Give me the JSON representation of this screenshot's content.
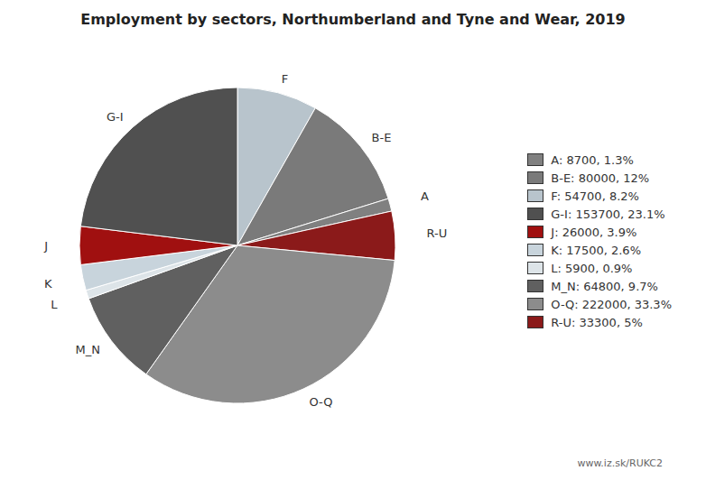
{
  "chart_data": {
    "type": "pie",
    "title": "Employment by sectors, Northumberland and Tyne and Wear, 2019",
    "categories": [
      "F",
      "B-E",
      "A",
      "R-U",
      "O-Q",
      "M_N",
      "L",
      "K",
      "J",
      "G-I"
    ],
    "values": [
      54700,
      80000,
      8700,
      33300,
      222000,
      64800,
      5900,
      17500,
      26000,
      153700
    ],
    "colors": [
      "#b8c4cc",
      "#7a7a7a",
      "#808080",
      "#8b1a1a",
      "#8c8c8c",
      "#606060",
      "#dde4e8",
      "#c8d4dc",
      "#a01010",
      "#505050"
    ],
    "legend": "right",
    "legend_entries": [
      {
        "category": "A",
        "label": "A: 8700, 1.3%"
      },
      {
        "category": "B-E",
        "label": "B-E: 80000, 12%"
      },
      {
        "category": "F",
        "label": "F: 54700, 8.2%"
      },
      {
        "category": "G-I",
        "label": "G-I: 153700, 23.1%"
      },
      {
        "category": "J",
        "label": "J: 26000, 3.9%"
      },
      {
        "category": "K",
        "label": "K: 17500, 2.6%"
      },
      {
        "category": "L",
        "label": "L: 5900, 0.9%"
      },
      {
        "category": "M_N",
        "label": "M_N: 64800, 9.7%"
      },
      {
        "category": "O-Q",
        "label": "O-Q: 222000, 33.3%"
      },
      {
        "category": "R-U",
        "label": "R-U: 33300, 5%"
      }
    ],
    "annotations": [
      "www.iz.sk/RUKC2"
    ]
  }
}
